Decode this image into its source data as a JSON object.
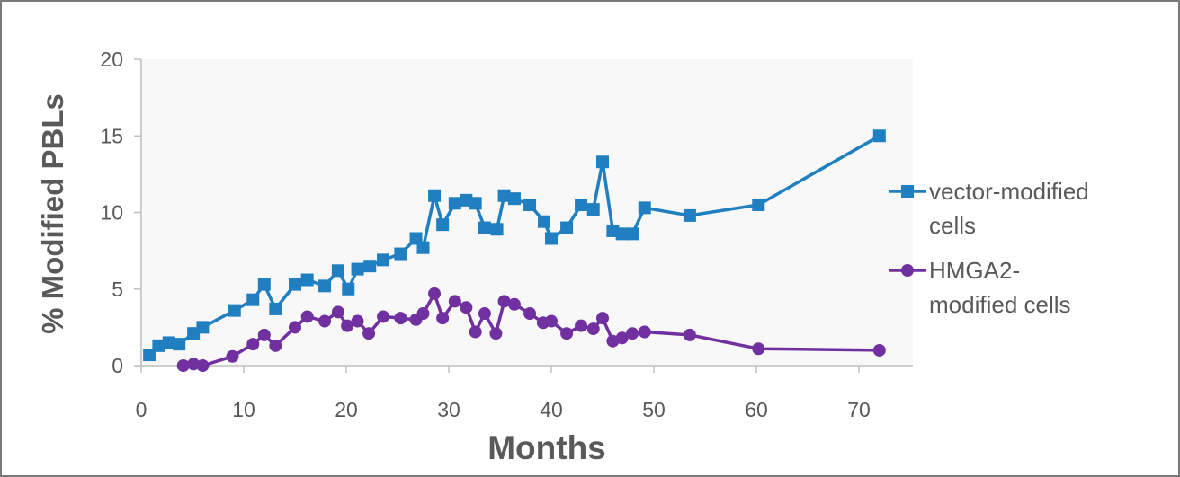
{
  "chart_data": {
    "type": "line",
    "title": "",
    "xlabel": "Months",
    "ylabel": "% Modified PBLs",
    "xlim": [
      0,
      75
    ],
    "ylim": [
      0,
      20
    ],
    "x_ticks": [
      0,
      10,
      20,
      30,
      40,
      50,
      60,
      70
    ],
    "y_ticks": [
      0,
      5,
      10,
      15,
      20
    ],
    "grid": false,
    "legend_position": "right",
    "series": [
      {
        "name": "vector-modified cells",
        "legend_lines": [
          "vector-modified",
          "cells"
        ],
        "color": "#1f7fc1",
        "marker": "square",
        "points": [
          [
            0.8,
            0.7
          ],
          [
            1.7,
            1.3
          ],
          [
            2.7,
            1.5
          ],
          [
            3.7,
            1.4
          ],
          [
            5.1,
            2.1
          ],
          [
            6.0,
            2.5
          ],
          [
            9.1,
            3.6
          ],
          [
            10.9,
            4.3
          ],
          [
            12.0,
            5.3
          ],
          [
            13.1,
            3.7
          ],
          [
            15.0,
            5.3
          ],
          [
            16.2,
            5.6
          ],
          [
            17.9,
            5.2
          ],
          [
            19.2,
            6.2
          ],
          [
            20.2,
            5.0
          ],
          [
            21.1,
            6.3
          ],
          [
            22.3,
            6.5
          ],
          [
            23.6,
            6.9
          ],
          [
            25.3,
            7.3
          ],
          [
            26.8,
            8.3
          ],
          [
            27.5,
            7.7
          ],
          [
            28.6,
            11.1
          ],
          [
            29.4,
            9.2
          ],
          [
            30.6,
            10.6
          ],
          [
            31.7,
            10.8
          ],
          [
            32.6,
            10.6
          ],
          [
            33.5,
            9.0
          ],
          [
            34.7,
            8.9
          ],
          [
            35.4,
            11.1
          ],
          [
            36.4,
            10.9
          ],
          [
            37.9,
            10.5
          ],
          [
            39.3,
            9.4
          ],
          [
            40.0,
            8.3
          ],
          [
            41.5,
            9.0
          ],
          [
            42.9,
            10.5
          ],
          [
            44.1,
            10.2
          ],
          [
            45.0,
            13.3
          ],
          [
            46.0,
            8.8
          ],
          [
            46.9,
            8.6
          ],
          [
            47.9,
            8.6
          ],
          [
            49.1,
            10.3
          ],
          [
            53.5,
            9.8
          ],
          [
            60.2,
            10.5
          ],
          [
            72.0,
            15.0
          ]
        ]
      },
      {
        "name": "HMGA2-modified cells",
        "legend_lines": [
          "HMGA2-",
          "modified cells"
        ],
        "color": "#7030a0",
        "marker": "circle",
        "points": [
          [
            4.1,
            0.0
          ],
          [
            5.1,
            0.1
          ],
          [
            6.0,
            0.0
          ],
          [
            8.9,
            0.6
          ],
          [
            10.9,
            1.4
          ],
          [
            12.0,
            2.0
          ],
          [
            13.1,
            1.3
          ],
          [
            15.0,
            2.5
          ],
          [
            16.2,
            3.2
          ],
          [
            17.9,
            2.9
          ],
          [
            19.2,
            3.5
          ],
          [
            20.1,
            2.6
          ],
          [
            21.1,
            2.9
          ],
          [
            22.2,
            2.1
          ],
          [
            23.6,
            3.2
          ],
          [
            25.3,
            3.1
          ],
          [
            26.8,
            3.0
          ],
          [
            27.5,
            3.4
          ],
          [
            28.6,
            4.7
          ],
          [
            29.4,
            3.1
          ],
          [
            30.6,
            4.2
          ],
          [
            31.7,
            3.8
          ],
          [
            32.6,
            2.2
          ],
          [
            33.5,
            3.4
          ],
          [
            34.6,
            2.1
          ],
          [
            35.4,
            4.2
          ],
          [
            36.4,
            4.0
          ],
          [
            37.9,
            3.4
          ],
          [
            39.2,
            2.8
          ],
          [
            40.0,
            2.9
          ],
          [
            41.5,
            2.1
          ],
          [
            42.9,
            2.6
          ],
          [
            44.1,
            2.4
          ],
          [
            45.0,
            3.1
          ],
          [
            46.0,
            1.6
          ],
          [
            46.9,
            1.8
          ],
          [
            47.9,
            2.1
          ],
          [
            49.1,
            2.2
          ],
          [
            53.5,
            2.0
          ],
          [
            60.2,
            1.1
          ],
          [
            72.0,
            1.0
          ]
        ]
      }
    ]
  }
}
